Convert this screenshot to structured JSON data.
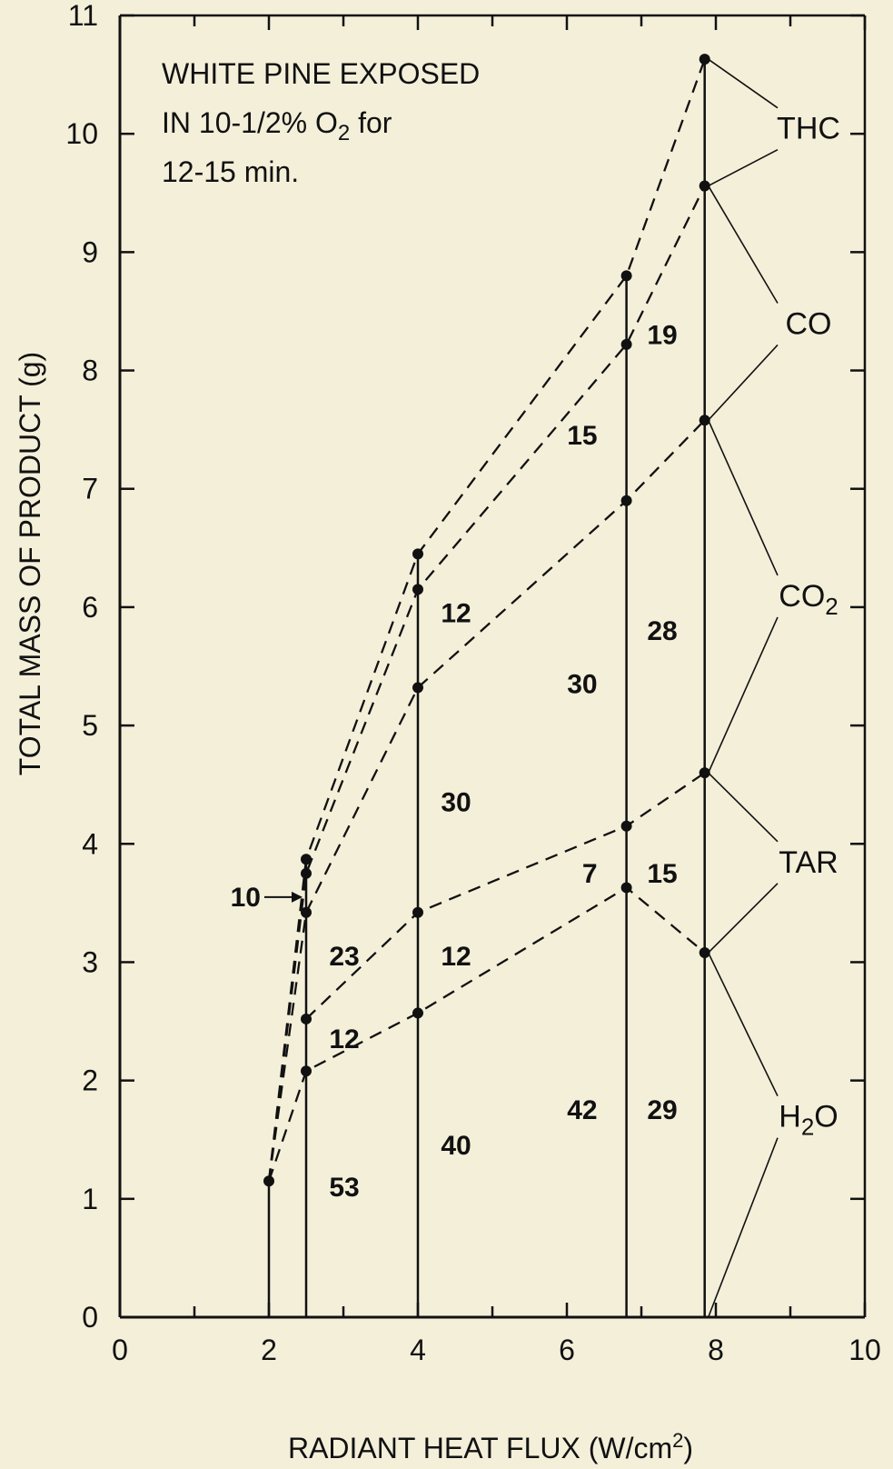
{
  "chart_data": {
    "type": "line",
    "title_lines": [
      "WHITE PINE EXPOSED",
      "IN 10-1/2% O",
      "12-15 min."
    ],
    "title_o2_subscript": "2",
    "title_o2_suffix": " for",
    "xlabel": "RADIANT HEAT FLUX (W/cm",
    "xlabel_sup": "2",
    "xlabel_end": ")",
    "ylabel": "TOTAL MASS OF PRODUCT (g)",
    "xlim": [
      0,
      10
    ],
    "ylim": [
      0,
      11
    ],
    "x_ticks": [
      "0",
      "2",
      "4",
      "6",
      "8",
      "10"
    ],
    "y_ticks": [
      "0",
      "1",
      "2",
      "3",
      "4",
      "5",
      "6",
      "7",
      "8",
      "9",
      "10",
      "11"
    ],
    "x_positions": [
      2.0,
      2.5,
      4.0,
      6.8,
      7.85
    ],
    "series": [
      {
        "name": "H2O",
        "values": [
          1.15,
          2.08,
          2.57,
          3.63,
          3.08
        ]
      },
      {
        "name": "TAR",
        "values": [
          null,
          2.52,
          3.42,
          4.15,
          4.6
        ]
      },
      {
        "name": "CO2",
        "values": [
          null,
          3.42,
          5.32,
          6.9,
          7.58
        ]
      },
      {
        "name": "CO",
        "values": [
          null,
          3.75,
          6.15,
          8.22,
          9.56
        ]
      },
      {
        "name": "THC",
        "values": [
          null,
          3.87,
          6.45,
          8.8,
          10.63
        ]
      }
    ],
    "segment_labels": [
      {
        "text": "53",
        "x": 2.5,
        "y": 1.1
      },
      {
        "text": "12",
        "x": 2.5,
        "y": 2.35
      },
      {
        "text": "23",
        "x": 2.5,
        "y": 3.05
      },
      {
        "text": "10",
        "x": 2.5,
        "y": 3.55
      },
      {
        "text": "40",
        "x": 4.0,
        "y": 1.45
      },
      {
        "text": "12",
        "x": 4.0,
        "y": 3.05
      },
      {
        "text": "30",
        "x": 4.0,
        "y": 4.35
      },
      {
        "text": "12",
        "x": 4.0,
        "y": 5.95
      },
      {
        "text": "42",
        "x": 6.8,
        "y": 1.75
      },
      {
        "text": "7",
        "x": 6.8,
        "y": 3.75
      },
      {
        "text": "30",
        "x": 6.8,
        "y": 5.35
      },
      {
        "text": "15",
        "x": 6.8,
        "y": 7.45
      },
      {
        "text": "29",
        "x": 7.85,
        "y": 1.75
      },
      {
        "text": "15",
        "x": 7.85,
        "y": 3.75
      },
      {
        "text": "28",
        "x": 7.85,
        "y": 5.8
      },
      {
        "text": "19",
        "x": 7.85,
        "y": 8.3
      }
    ],
    "species_labels": [
      {
        "text": "THC",
        "sub": ""
      },
      {
        "text": "CO",
        "sub": ""
      },
      {
        "text": "CO",
        "sub": "2"
      },
      {
        "text": "TAR",
        "sub": ""
      },
      {
        "text": "H",
        "sub": "2",
        "end": "O"
      }
    ],
    "line_style": "dashed",
    "grid": false
  }
}
